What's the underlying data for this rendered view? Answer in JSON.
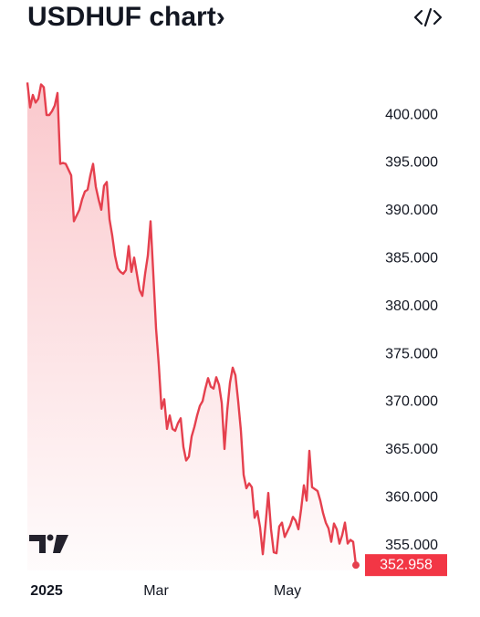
{
  "chart_data": {
    "type": "line",
    "title": "USDHUF chart›",
    "series": [
      {
        "name": "USDHUF",
        "color": "#e5404e",
        "values": [
          403.4,
          400.8,
          402.1,
          401.3,
          401.7,
          403.2,
          402.9,
          400,
          400,
          400.4,
          401,
          402.3,
          394.9,
          395,
          394.9,
          394.3,
          393.7,
          388.9,
          389.5,
          390.1,
          391.2,
          392,
          392.2,
          393.7,
          394.9,
          392.5,
          391.2,
          390.1,
          392.6,
          393,
          389.1,
          387.4,
          385.3,
          384,
          383.6,
          383.4,
          383.8,
          386.3,
          383.6,
          385.1,
          383.4,
          381.7,
          381.1,
          383.4,
          385.3,
          388.9,
          383.4,
          377.7,
          373.9,
          369.3,
          370.3,
          367.2,
          368.6,
          367.2,
          367,
          367.8,
          368.3,
          365.3,
          363.9,
          364.3,
          366.4,
          367.4,
          368.6,
          369.6,
          370.1,
          371.4,
          372.5,
          371.6,
          371.4,
          372.6,
          371.8,
          369.9,
          365.1,
          369.1,
          372,
          373.6,
          372.8,
          370.1,
          367,
          362.4,
          361,
          361.5,
          361.1,
          357.9,
          358.6,
          356.9,
          354.1,
          357.2,
          360.5,
          356.7,
          354.3,
          354.2,
          357,
          357.4,
          355.9,
          356.5,
          357.1,
          358,
          357.6,
          356.7,
          358.8,
          361.3,
          359.7,
          364.9,
          361.1,
          360.9,
          360.7,
          359.7,
          358.4,
          357.4,
          356.8,
          355.4,
          357.3,
          356.7,
          355.2,
          356.1,
          357.4,
          355.2,
          355.6,
          355.4,
          352.958
        ],
        "value_labels": [
          null,
          null,
          null,
          null,
          null,
          null,
          null,
          null,
          null,
          null,
          null,
          null,
          null,
          null,
          null,
          null,
          null,
          null,
          null,
          null,
          null,
          null,
          null,
          null,
          null,
          null,
          null,
          null,
          null,
          null,
          null,
          null,
          null,
          null,
          null,
          null,
          null,
          null,
          null,
          null,
          null,
          null,
          null,
          null,
          null,
          null,
          null,
          null,
          null,
          null,
          null,
          null,
          null,
          null,
          null,
          null,
          null,
          null,
          null,
          null,
          null,
          null,
          null,
          null,
          null,
          null,
          null,
          null,
          null,
          null,
          null,
          null,
          null,
          null,
          null,
          null,
          null,
          null,
          null,
          null,
          null,
          null,
          null,
          null,
          null,
          null,
          null,
          null,
          null,
          null,
          null,
          null,
          null,
          null,
          null,
          null,
          null,
          null,
          null,
          null,
          null,
          null,
          null,
          null,
          null,
          null,
          null,
          null,
          null,
          null,
          null,
          null,
          null,
          null,
          null,
          null,
          null,
          null,
          null,
          null,
          "352.958"
        ]
      }
    ],
    "xlim": [
      0,
      120
    ],
    "xticks": [
      {
        "value": 7,
        "label": "2025"
      },
      {
        "value": 47,
        "label": "Mar"
      },
      {
        "value": 95,
        "label": "May"
      }
    ],
    "ylim": [
      352.4,
      406.3
    ],
    "yticks": [
      {
        "value": 355,
        "label": "355.000"
      },
      {
        "value": 360,
        "label": "360.000"
      },
      {
        "value": 365,
        "label": "365.000"
      },
      {
        "value": 370,
        "label": "370.000"
      },
      {
        "value": 375,
        "label": "375.000"
      },
      {
        "value": 380,
        "label": "380.000"
      },
      {
        "value": 385,
        "label": "385.000"
      },
      {
        "value": 390,
        "label": "390.000"
      },
      {
        "value": 395,
        "label": "395.000"
      },
      {
        "value": 400,
        "label": "400.000"
      }
    ],
    "grid": false
  }
}
